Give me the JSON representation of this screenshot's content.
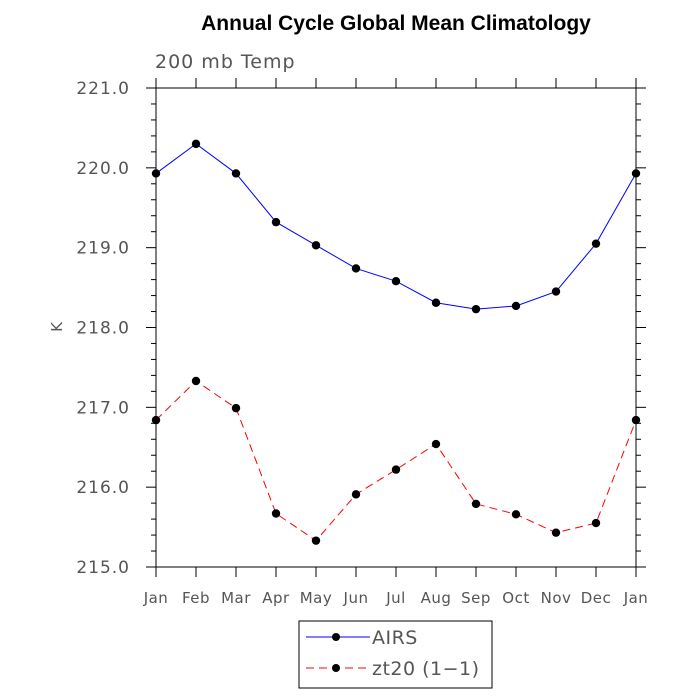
{
  "chart_data": {
    "type": "line",
    "title": "Annual Cycle Global Mean Climatology",
    "subtitle": "200 mb Temp",
    "xlabel": "",
    "ylabel": "K",
    "categories": [
      "Jan",
      "Feb",
      "Mar",
      "Apr",
      "May",
      "Jun",
      "Jul",
      "Aug",
      "Sep",
      "Oct",
      "Nov",
      "Dec",
      "Jan"
    ],
    "ylim": [
      215.0,
      221.0
    ],
    "yticks": [
      "215.0",
      "216.0",
      "217.0",
      "218.0",
      "219.0",
      "220.0",
      "221.0"
    ],
    "grid": false,
    "legend_position": "bottom-center",
    "series": [
      {
        "name": "AIRS",
        "color": "#0000ff",
        "line_style": "solid",
        "marker": "filled-circle",
        "values": [
          219.93,
          220.3,
          219.93,
          219.32,
          219.03,
          218.74,
          218.58,
          218.31,
          218.23,
          218.27,
          218.45,
          219.05,
          219.93
        ]
      },
      {
        "name": "zt20 (1−1)",
        "color": "#ff0000",
        "line_style": "dashed",
        "marker": "filled-circle",
        "values": [
          216.84,
          217.33,
          216.99,
          215.67,
          215.33,
          215.91,
          216.22,
          216.54,
          215.79,
          215.66,
          215.43,
          215.55,
          216.84
        ]
      }
    ]
  }
}
